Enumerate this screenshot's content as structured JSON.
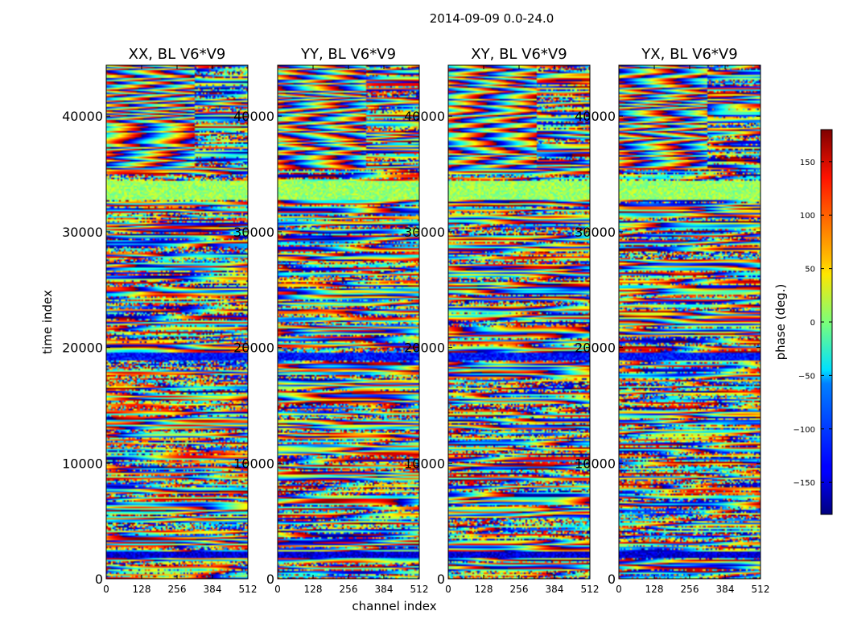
{
  "suptitle": "2014-09-09 0.0-24.0",
  "chart_data": {
    "type": "heatmap",
    "colormap": "jet",
    "xlabel": "channel index",
    "ylabel": "time index",
    "xlim": [
      0,
      512
    ],
    "ylim": [
      0,
      44400
    ],
    "xticks": [
      0,
      128,
      256,
      384,
      512
    ],
    "yticks": [
      0,
      10000,
      20000,
      30000,
      40000
    ],
    "panels": [
      {
        "title": "XX, BL V6*V9"
      },
      {
        "title": "YY, BL V6*V9"
      },
      {
        "title": "XY, BL V6*V9"
      },
      {
        "title": "YX, BL V6*V9"
      }
    ],
    "colorbar": {
      "label": "phase (deg.)",
      "range": [
        -180,
        180
      ],
      "ticks": [
        150,
        100,
        50,
        0,
        -50,
        -100,
        -150
      ],
      "tick_labels": [
        "150",
        "100",
        "50",
        "0",
        "−50",
        "−100",
        "−150"
      ]
    },
    "bands": [
      {
        "y0": 32700,
        "y1": 34400,
        "phase": 10,
        "note": "flat green block"
      },
      {
        "y0": 18900,
        "y1": 19600,
        "phase": -130,
        "note": "dark stripe"
      },
      {
        "y0": 1800,
        "y1": 2400,
        "phase": -150,
        "note": "dark stripe"
      }
    ]
  }
}
